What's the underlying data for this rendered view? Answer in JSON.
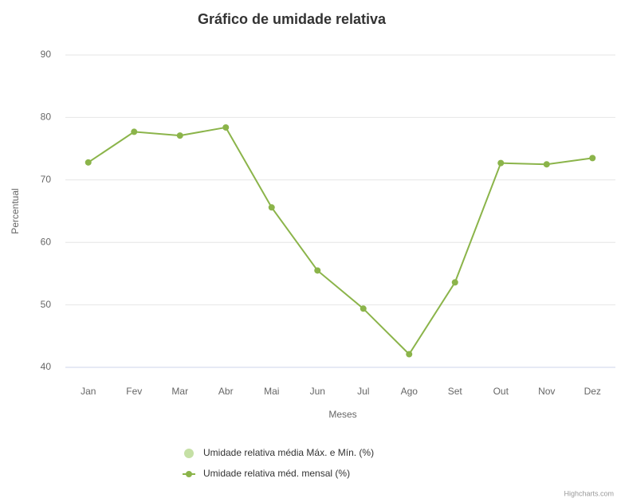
{
  "chart_data": {
    "type": "line",
    "title": "Gráfico de umidade relativa",
    "x_label": "Meses",
    "y_label": "Percentual",
    "categories": [
      "Jan",
      "Fev",
      "Mar",
      "Abr",
      "Mai",
      "Jun",
      "Jul",
      "Ago",
      "Set",
      "Out",
      "Nov",
      "Dez"
    ],
    "series": [
      {
        "name": "Umidade relativa média Máx. e Mín. (%)",
        "color": "#c5e0a5"
      },
      {
        "name": "Umidade relativa méd. mensal (%)",
        "color": "#8bb44a",
        "values": [
          72.8,
          77.7,
          77.1,
          78.4,
          65.6,
          55.5,
          49.4,
          42.1,
          53.6,
          72.7,
          72.5,
          73.5
        ]
      }
    ],
    "ylim": [
      40,
      90
    ],
    "yticks": [
      40,
      50,
      60,
      70,
      80,
      90
    ],
    "grid": true,
    "credits": "Highcharts.com"
  }
}
